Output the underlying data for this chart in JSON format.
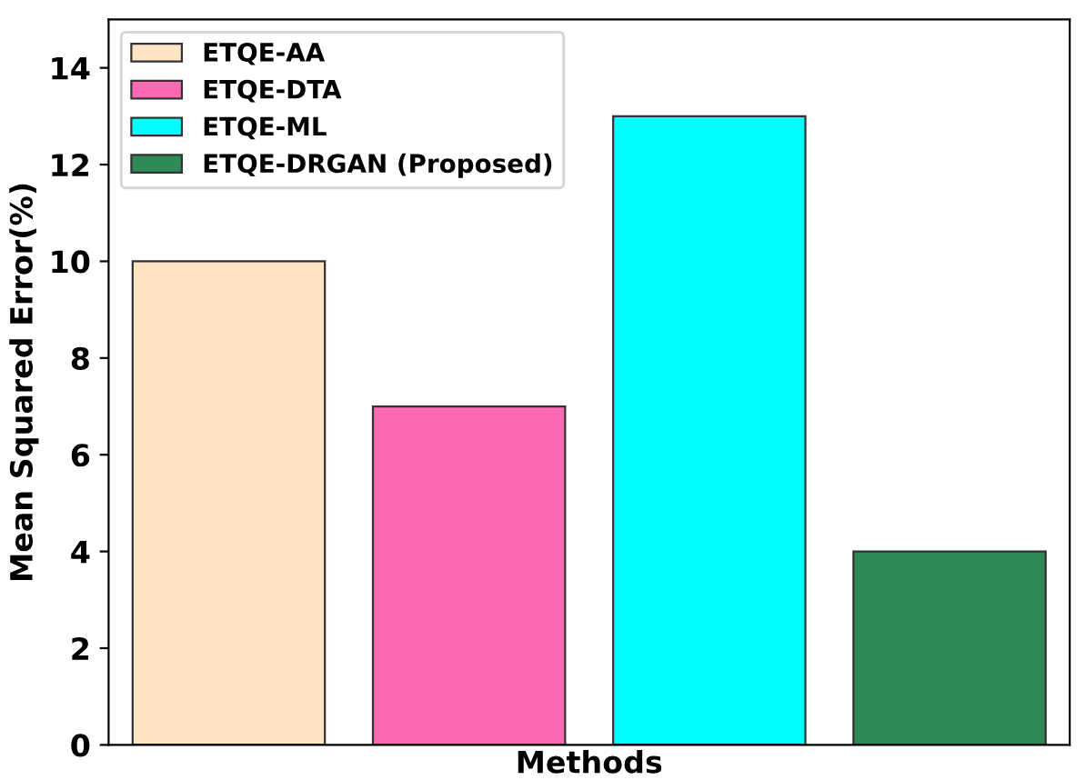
{
  "chart_data": {
    "type": "bar",
    "xlabel": "Methods",
    "ylabel": "Mean Squared Error(%)",
    "categories": [
      null,
      null,
      null,
      null
    ],
    "series": [
      {
        "name": "ETQE-AA",
        "color": "#ffe4c4",
        "values": [
          10,
          null,
          null,
          null
        ]
      },
      {
        "name": "ETQE-DTA",
        "color": "#ff69b4",
        "values": [
          null,
          7,
          null,
          null
        ]
      },
      {
        "name": "ETQE-ML",
        "color": "#00ffff",
        "values": [
          null,
          null,
          13,
          null
        ]
      },
      {
        "name": "ETQE-DRGAN (Proposed)",
        "color": "#2e8b57",
        "values": [
          null,
          null,
          null,
          4
        ]
      }
    ],
    "ylim": [
      0,
      15
    ],
    "yticks": [
      0,
      2,
      4,
      6,
      8,
      10,
      12,
      14
    ],
    "tick_labels": "y",
    "grid": false,
    "legend": "top left"
  }
}
